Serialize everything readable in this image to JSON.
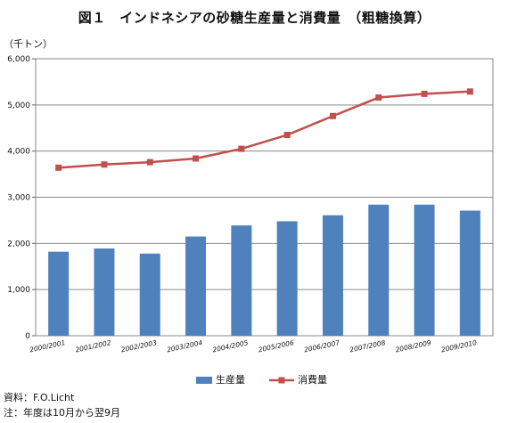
{
  "chart_data": {
    "type": "bar",
    "title": "図１　インドネシアの砂糖生産量と消費量　（粗糖換算）",
    "ylabel": "（千トン）",
    "ylim": [
      0,
      6000
    ],
    "yticks": [
      "0",
      "1,000",
      "2,000",
      "3,000",
      "4,000",
      "5,000",
      "6,000"
    ],
    "categories": [
      "2000/2001",
      "2001/2002",
      "2002/2003",
      "2003/2004",
      "2004/2005",
      "2005/2006",
      "2006/2007",
      "2007/2008",
      "2008/2009",
      "2009/2010"
    ],
    "series": [
      {
        "name": "生産量",
        "type": "bar",
        "color": "#4f81bd",
        "values": [
          1820,
          1890,
          1780,
          2150,
          2390,
          2480,
          2610,
          2840,
          2840,
          2710
        ]
      },
      {
        "name": "消費量",
        "type": "line",
        "color": "#c0504d",
        "values": [
          3640,
          3710,
          3760,
          3840,
          4050,
          4350,
          4760,
          5160,
          5240,
          5290
        ]
      }
    ],
    "grid": true,
    "legend": "bottom"
  },
  "notes": {
    "source": "資料：F.O.Licht",
    "season": "注：年度は10月から翌9月"
  }
}
